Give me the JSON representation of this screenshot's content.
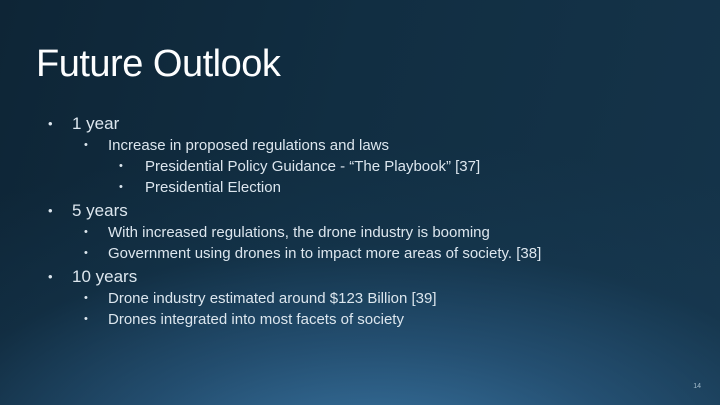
{
  "slide": {
    "title": "Future Outlook",
    "page_number": "14",
    "bullet_glyph": "•",
    "bullets": [
      {
        "level": 1,
        "text": "1 year"
      },
      {
        "level": 2,
        "text": "Increase in proposed regulations and laws"
      },
      {
        "level": 3,
        "text": "Presidential Policy Guidance - “The Playbook” [37]"
      },
      {
        "level": 3,
        "text": "Presidential Election"
      },
      {
        "level": 1,
        "text": "5 years"
      },
      {
        "level": 2,
        "text": "With increased regulations, the drone industry is booming"
      },
      {
        "level": 2,
        "text": "Government using drones in to impact more areas of society. [38]"
      },
      {
        "level": 1,
        "text": "10 years"
      },
      {
        "level": 2,
        "text": "Drone industry estimated around $123 Billion [39]"
      },
      {
        "level": 2,
        "text": "Drones integrated into most facets of society"
      }
    ],
    "colors": {
      "background_top": "#0e2536",
      "background_glow": "#3e7cac",
      "title_text": "#fdfeff",
      "body_text": "#dce6ee",
      "page_number_text": "#a3bccb"
    }
  }
}
